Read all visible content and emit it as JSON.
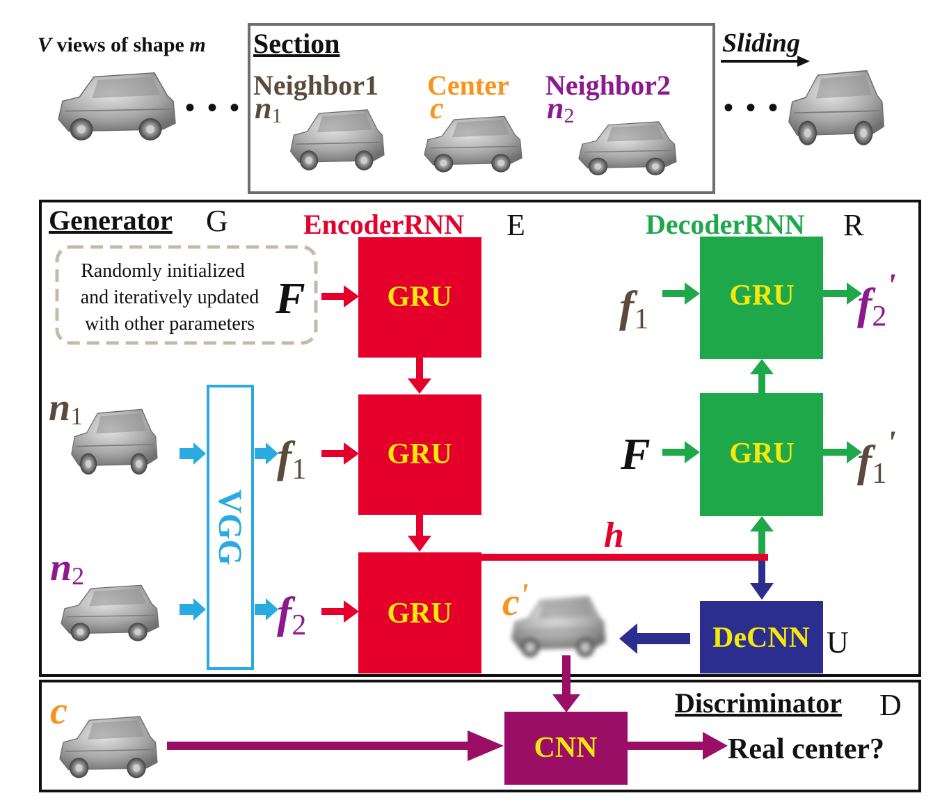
{
  "top": {
    "views_caption_v": "V",
    "views_caption_text": " views of shape ",
    "views_caption_m": "m",
    "section_title": "Section",
    "sliding": "Sliding",
    "neighbor1_label": "Neighbor1",
    "center_label": "Center",
    "neighbor2_label": "Neighbor2",
    "n1_letter": "n",
    "n1_sub": "1",
    "c_letter": "c",
    "n2_letter": "n",
    "n2_sub": "2",
    "dots": "• • •"
  },
  "generator": {
    "title": "Generator",
    "symbol": "G",
    "init_note": [
      "Randomly initialized",
      "and iteratively updated",
      "with other parameters"
    ],
    "F_label": "F",
    "vgg_label": "VGG",
    "n1_letter": "n",
    "n1_sub": "1",
    "n2_letter": "n",
    "n2_sub": "2",
    "f1_letter": "f",
    "f1_sub": "1",
    "f2_letter": "f",
    "f2_sub": "2",
    "h_label": "h",
    "c_prime_letter": "c",
    "c_prime_mark": "'"
  },
  "encoder": {
    "title": "EncoderRNN",
    "symbol": "E",
    "gru_labels": [
      "GRU",
      "GRU",
      "GRU"
    ]
  },
  "decoder": {
    "title": "DecoderRNN",
    "symbol": "R",
    "gru_labels": [
      "GRU",
      "GRU"
    ],
    "top_input_letter": "f",
    "top_input_sub": "1",
    "top_output_letter": "f",
    "top_output_sub": "2",
    "top_output_mark": "'",
    "bottom_input": "F",
    "bottom_output_letter": "f",
    "bottom_output_sub": "1",
    "bottom_output_mark": "'"
  },
  "decnn": {
    "label": "DeCNN",
    "symbol": "U"
  },
  "discriminator": {
    "title": "Discriminator",
    "symbol": "D",
    "cnn_label": "CNN",
    "output_label": "Real center?",
    "c_letter": "c"
  },
  "colors": {
    "encoder_red": "#e4002b",
    "decoder_green": "#1ea84a",
    "vgg_blue": "#29abe2",
    "decnn_navy": "#2b2d8f",
    "cnn_purple": "#9b0e66",
    "gru_text_yellow": "#f7e80c",
    "center_orange": "#f7941d",
    "neighbor2_purple": "#8b1a8c",
    "neighbor1_brown": "#5b4a3c",
    "note_border_tan": "#c8b8a6",
    "frame_gray": "#6d6d6d"
  },
  "icons": [
    "car-view-icon",
    "arrow-right-icon"
  ]
}
